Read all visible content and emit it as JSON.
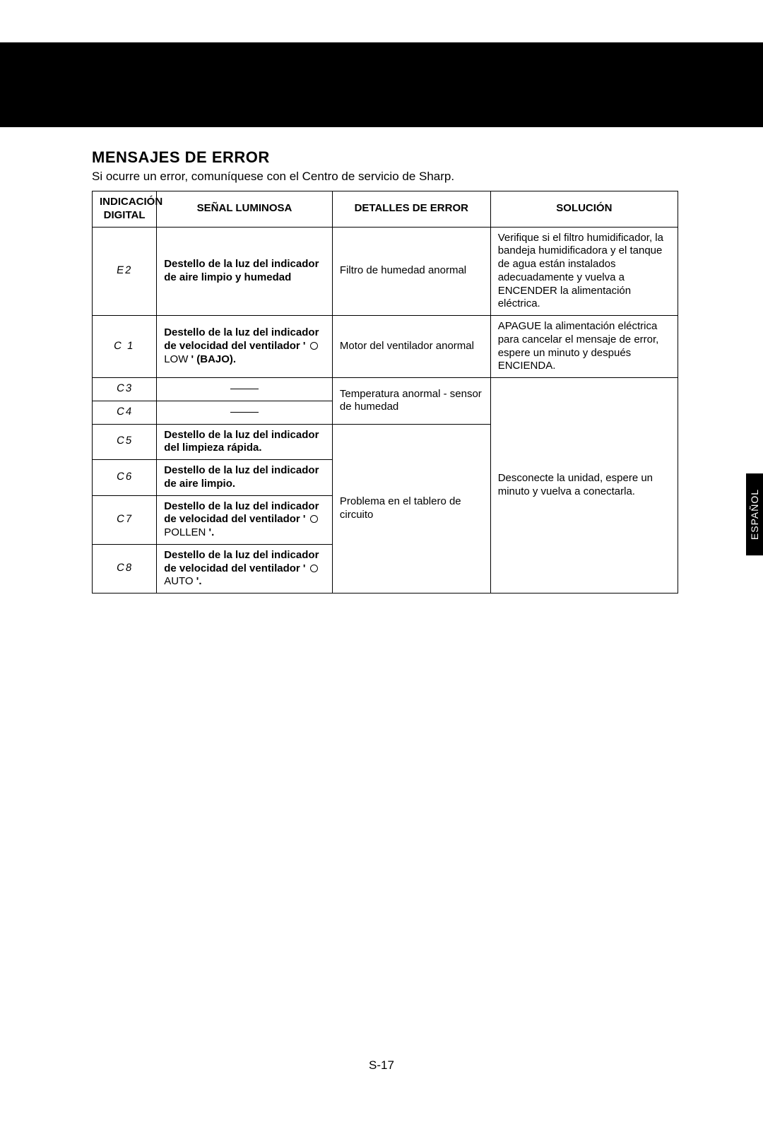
{
  "header_block_color": "#000000",
  "section_title": "MENSAJES DE ERROR",
  "subtitle": "Si ocurre un error, comuníquese con el Centro de servicio de Sharp.",
  "table": {
    "headers": {
      "indicacion": "INDICACIÓN DIGITAL",
      "signal": "SEÑAL LUMINOSA",
      "details": "DETALLES DE ERROR",
      "solution": "SOLUCIÓN"
    },
    "rows": {
      "e2": {
        "code": "E2",
        "seg": "E2",
        "signal": "Destello de la luz del indicador de aire limpio y humedad",
        "details": "Filtro de humedad anormal",
        "solution": "Verifique si el filtro humidificador, la bandeja humidificadora y el tanque de agua están instalados adecuadamente y vuelva a ENCENDER la alimentación eléctrica."
      },
      "c1": {
        "code": "C1",
        "seg": "C 1",
        "signal_pre": "Destello de la luz del indicador de velocidad del ventilador ' ",
        "signal_label": "LOW",
        "signal_post": " ' (BAJO).",
        "details": "Motor del ventilador anormal",
        "solution": "APAGUE la alimentación eléctrica para cancelar el mensaje de error, espere un minuto y después ENCIENDA."
      },
      "c3": {
        "code": "C3",
        "seg": "C3"
      },
      "c4": {
        "code": "C4",
        "seg": "C4"
      },
      "c3c4_details": "Temperatura anormal - sensor de humedad",
      "c3_solution": "Desconecte la unidad, espere un minuto y vuelva a conectarla.",
      "c5": {
        "code": "C5",
        "seg": "C5",
        "signal": "Destello de la luz del indicador del limpieza rápida."
      },
      "c5_details": "Problema en el tablero de circuito",
      "c6": {
        "code": "C6",
        "seg": "C6",
        "signal": "Destello de la luz del indicador de aire limpio."
      },
      "c7": {
        "code": "C7",
        "seg": "C7",
        "signal_pre": "Destello de la luz del indicador de velocidad del ventilador ' ",
        "signal_label": "POLLEN",
        "signal_post": " '."
      },
      "c8": {
        "code": "C8",
        "seg": "C8",
        "signal_pre": "Destello de la luz del indicador de velocidad del ventilador ' ",
        "signal_label": "AUTO",
        "signal_post": " '."
      }
    }
  },
  "lang_tab": "ESPAÑOL",
  "page_number": "S-17",
  "colors": {
    "black": "#000000",
    "white": "#ffffff"
  }
}
